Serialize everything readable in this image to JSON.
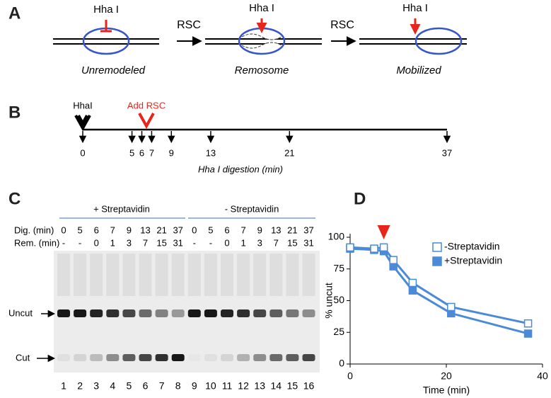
{
  "panel_a": {
    "letter": "A",
    "enzyme_labels": [
      "Hha I",
      "Hha I",
      "Hha I"
    ],
    "step_labels": [
      "RSC",
      "RSC"
    ],
    "state_labels": [
      "Unremodeled",
      "Remosome",
      "Mobilized"
    ]
  },
  "panel_b": {
    "letter": "B",
    "enzyme_label": "HhaI",
    "add_label": "Add RSC",
    "timepoints": [
      0,
      5,
      6,
      7,
      9,
      13,
      21,
      37
    ],
    "axis_label": "Hha I digestion (min)"
  },
  "panel_c": {
    "letter": "C",
    "group_labels": [
      "+ Streptavidin",
      "- Streptavidin"
    ],
    "row_labels": [
      "Dig. (min)",
      "Rem. (min)"
    ],
    "dig_times": [
      "0",
      "5",
      "6",
      "7",
      "9",
      "13",
      "21",
      "37",
      "0",
      "5",
      "6",
      "7",
      "9",
      "13",
      "21",
      "37"
    ],
    "rem_times": [
      "-",
      "-",
      "0",
      "1",
      "3",
      "7",
      "15",
      "31",
      "-",
      "-",
      "0",
      "1",
      "3",
      "7",
      "15",
      "31"
    ],
    "band_labels": [
      "Uncut",
      "Cut"
    ],
    "lanes": [
      "1",
      "2",
      "3",
      "4",
      "5",
      "6",
      "7",
      "8",
      "9",
      "10",
      "11",
      "12",
      "13",
      "14",
      "15",
      "16"
    ]
  },
  "panel_d": {
    "letter": "D"
  },
  "chart_data": {
    "type": "line",
    "ylabel": "% uncut",
    "xlabel": "Time (min)",
    "x": [
      0,
      5,
      7,
      9,
      13,
      21,
      37
    ],
    "series": [
      {
        "name": "-Streptavidin",
        "color": "#4a8ad8",
        "marker": "open-square",
        "values": [
          92,
          91,
          92,
          82,
          64,
          45,
          32
        ]
      },
      {
        "name": "+Streptavidin",
        "color": "#4a8ad8",
        "marker": "filled-square",
        "values": [
          91,
          90,
          89,
          77,
          58,
          40,
          24
        ]
      }
    ],
    "xlim": [
      0,
      40
    ],
    "ylim": [
      0,
      100
    ],
    "xticks": [
      0,
      20,
      40
    ],
    "yticks": [
      0,
      25,
      50,
      75,
      100
    ],
    "legend": "upper right",
    "arrow_x": 7,
    "arrow_color": "#e8251c"
  }
}
